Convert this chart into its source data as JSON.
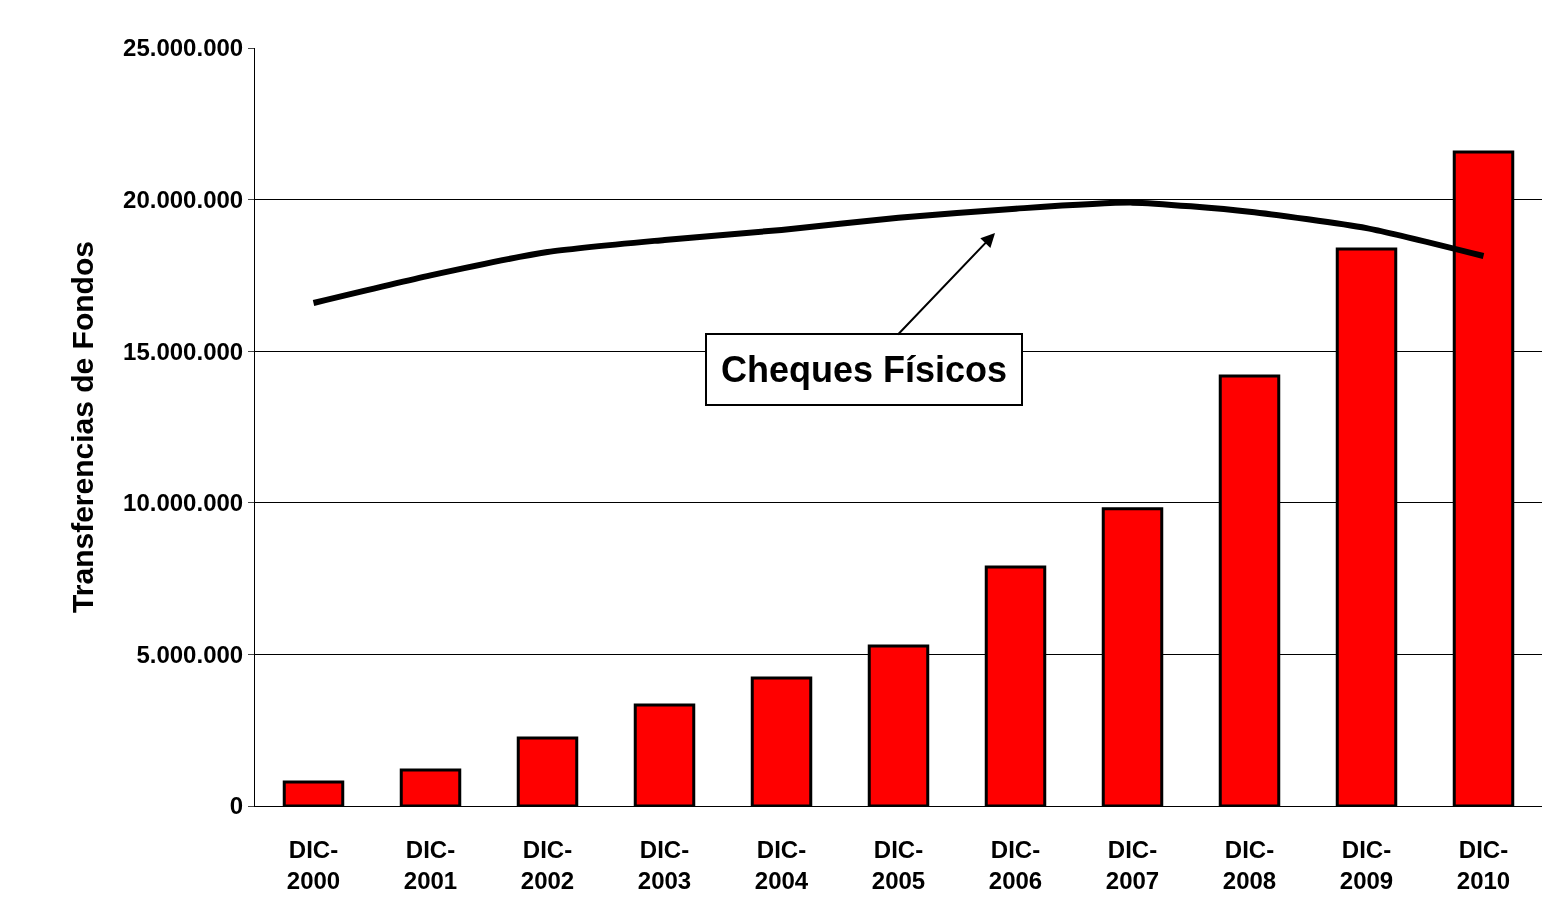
{
  "chart_data": {
    "type": "bar",
    "ylabel": "Transferencias de Fondos",
    "categories": [
      "DIC-\n2000",
      "DIC-\n2001",
      "DIC-\n2002",
      "DIC-\n2003",
      "DIC-\n2004",
      "DIC-\n2005",
      "DIC-\n2006",
      "DIC-\n2007",
      "DIC-\n2008",
      "DIC-\n2009",
      "DIC-\n2010"
    ],
    "series": [
      {
        "color": "#ff0000",
        "values": [
          790000,
          1190000,
          2240000,
          3330000,
          4220000,
          5280000,
          7880000,
          9800000,
          14180000,
          18370000,
          21570000
        ]
      },
      {
        "type": "line",
        "color": "#000000",
        "values": [
          16590000,
          17500000,
          18270000,
          18670000,
          19000000,
          19400000,
          19700000,
          19900000,
          19600000,
          19060000,
          18140000
        ]
      }
    ],
    "ylim": [
      0,
      25000000
    ],
    "yticks": [
      {
        "value": 0,
        "label": "0"
      },
      {
        "value": 5000000,
        "label": "5.000.000"
      },
      {
        "value": 10000000,
        "label": "10.000.000"
      },
      {
        "value": 15000000,
        "label": "15.000.000"
      },
      {
        "value": 20000000,
        "label": "20.000.000"
      },
      {
        "value": 25000000,
        "label": "25.000.000"
      }
    ],
    "grid": "y",
    "annotations": [
      "Cheques Físicos"
    ]
  }
}
